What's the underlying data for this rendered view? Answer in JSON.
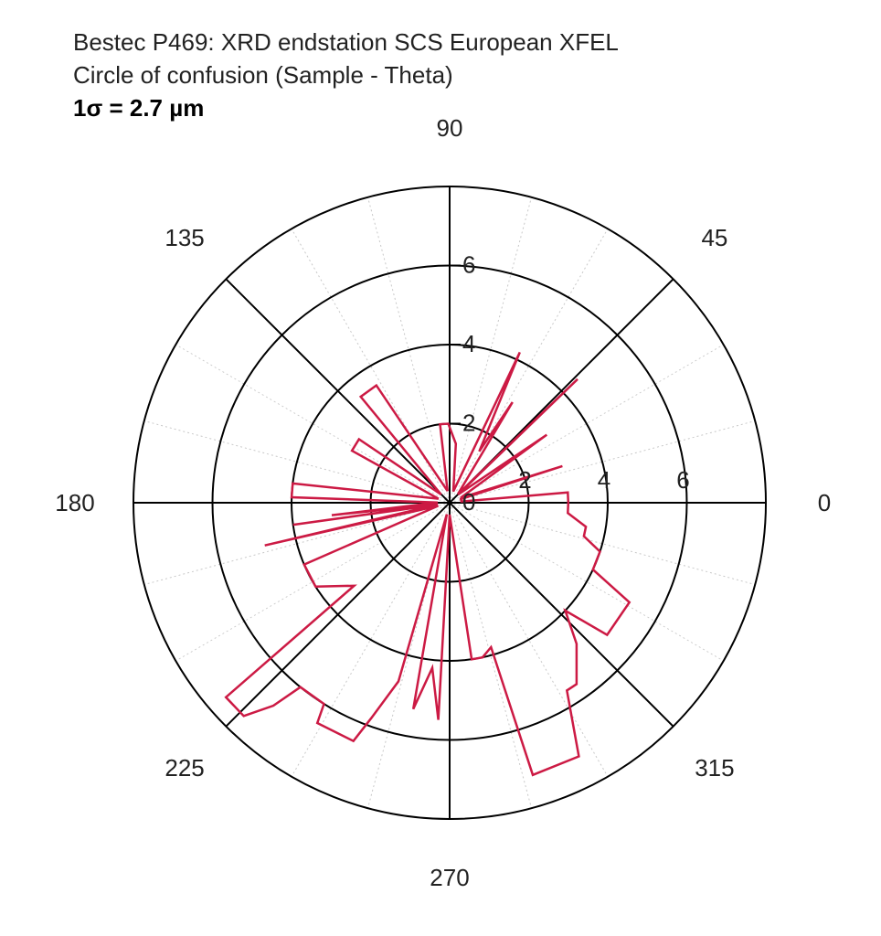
{
  "title": {
    "line1": "Bestec P469: XRD endstation SCS European XFEL",
    "line2": "Circle of confusion (Sample - Theta)",
    "sigma": "1σ = 2.7 µm"
  },
  "chart_data": {
    "type": "polar",
    "angle_unit": "degrees",
    "radius_range": [
      0,
      8
    ],
    "radial_ticks": [
      0,
      2,
      4,
      6
    ],
    "angular_tick_labels": [
      "0",
      "45",
      "90",
      "135",
      "180",
      "225",
      "270",
      "315"
    ],
    "radial_tick_labels": [
      "0",
      "2",
      "4",
      "6"
    ],
    "grid": true,
    "series_color": "#cc1a44",
    "series": [
      {
        "points": [
          {
            "theta": 0,
            "r": 3.0
          },
          {
            "theta": 5,
            "r": 3.0
          },
          {
            "theta": 6,
            "r": 0.3
          },
          {
            "theta": 18,
            "r": 0.3
          },
          {
            "theta": 18,
            "r": 3.0
          },
          {
            "theta": 24,
            "r": 0.3
          },
          {
            "theta": 35,
            "r": 3.0
          },
          {
            "theta": 44,
            "r": 0.3
          },
          {
            "theta": 44,
            "r": 4.5
          },
          {
            "theta": 46,
            "r": 0.3
          },
          {
            "theta": 58,
            "r": 3.0
          },
          {
            "theta": 60,
            "r": 1.5
          },
          {
            "theta": 65,
            "r": 4.2
          },
          {
            "theta": 72,
            "r": 0.3
          },
          {
            "theta": 84,
            "r": 1.5
          },
          {
            "theta": 91,
            "r": 2.0
          },
          {
            "theta": 97,
            "r": 2.0
          },
          {
            "theta": 100,
            "r": 0.3
          },
          {
            "theta": 122,
            "r": 3.5
          },
          {
            "theta": 130,
            "r": 3.5
          },
          {
            "theta": 136,
            "r": 0.3
          },
          {
            "theta": 145,
            "r": 2.8
          },
          {
            "theta": 152,
            "r": 2.8
          },
          {
            "theta": 160,
            "r": 0.3
          },
          {
            "theta": 173,
            "r": 4.0
          },
          {
            "theta": 178,
            "r": 4.0
          },
          {
            "theta": 179,
            "r": 0.3
          },
          {
            "theta": 186,
            "r": 3.0
          },
          {
            "theta": 188,
            "r": 0.3
          },
          {
            "theta": 188,
            "r": 4.0
          },
          {
            "theta": 189,
            "r": 0.3
          },
          {
            "theta": 193,
            "r": 4.8
          },
          {
            "theta": 195,
            "r": 0.3
          },
          {
            "theta": 203,
            "r": 4.0
          },
          {
            "theta": 212,
            "r": 4.0
          },
          {
            "theta": 221,
            "r": 3.2
          },
          {
            "theta": 221,
            "r": 7.5
          },
          {
            "theta": 226,
            "r": 7.5
          },
          {
            "theta": 229,
            "r": 6.8
          },
          {
            "theta": 231,
            "r": 6.0
          },
          {
            "theta": 238,
            "r": 6.0
          },
          {
            "theta": 239,
            "r": 6.5
          },
          {
            "theta": 248,
            "r": 6.5
          },
          {
            "theta": 250,
            "r": 5.8
          },
          {
            "theta": 254,
            "r": 4.7
          },
          {
            "theta": 256,
            "r": 0.3
          },
          {
            "theta": 260,
            "r": 5.3
          },
          {
            "theta": 264,
            "r": 4.2
          },
          {
            "theta": 267,
            "r": 5.5
          },
          {
            "theta": 270,
            "r": 0.3
          },
          {
            "theta": 278,
            "r": 4.0
          },
          {
            "theta": 282,
            "r": 4.0
          },
          {
            "theta": 286,
            "r": 3.8
          },
          {
            "theta": 287,
            "r": 7.2
          },
          {
            "theta": 297,
            "r": 7.2
          },
          {
            "theta": 302,
            "r": 5.6
          },
          {
            "theta": 305,
            "r": 5.6
          },
          {
            "theta": 312,
            "r": 4.8
          },
          {
            "theta": 317,
            "r": 4.0
          },
          {
            "theta": 320,
            "r": 5.2
          },
          {
            "theta": 331,
            "r": 5.2
          },
          {
            "theta": 335,
            "r": 4.0
          },
          {
            "theta": 342,
            "r": 4.0
          },
          {
            "theta": 346,
            "r": 3.5
          },
          {
            "theta": 350,
            "r": 3.5
          },
          {
            "theta": 355,
            "r": 3.0
          },
          {
            "theta": 360,
            "r": 3.0
          }
        ]
      }
    ]
  }
}
